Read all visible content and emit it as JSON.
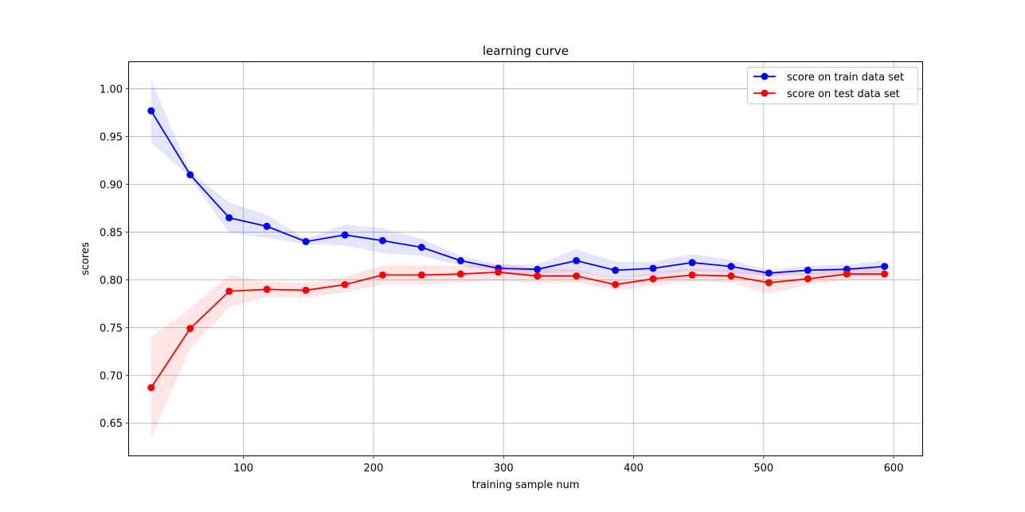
{
  "chart_data": {
    "type": "line",
    "title": "learning curve",
    "xlabel": "training sample num",
    "ylabel": "scores",
    "xlim": [
      12,
      622
    ],
    "ylim": [
      0.616,
      1.028
    ],
    "xticks": [
      100,
      200,
      300,
      400,
      500,
      600
    ],
    "yticks": [
      0.65,
      0.7,
      0.75,
      0.8,
      0.85,
      0.9,
      0.95,
      1.0
    ],
    "xtick_labels": [
      "100",
      "200",
      "300",
      "400",
      "500",
      "600"
    ],
    "ytick_labels": [
      "0.65",
      "0.70",
      "0.75",
      "0.80",
      "0.85",
      "0.90",
      "0.95",
      "1.00"
    ],
    "grid": true,
    "legend_position": "top-right",
    "x": [
      29,
      59,
      89,
      118,
      148,
      178,
      207,
      237,
      267,
      296,
      326,
      356,
      386,
      415,
      445,
      475,
      504,
      534,
      564,
      593
    ],
    "series": [
      {
        "name": "score on train data set",
        "color": "#0000ff",
        "band_color": "#0000ff",
        "values": [
          0.977,
          0.91,
          0.865,
          0.856,
          0.84,
          0.847,
          0.841,
          0.834,
          0.82,
          0.812,
          0.811,
          0.82,
          0.81,
          0.812,
          0.818,
          0.814,
          0.807,
          0.81,
          0.811,
          0.814
        ],
        "lower": [
          0.944,
          0.907,
          0.849,
          0.844,
          0.837,
          0.836,
          0.828,
          0.825,
          0.815,
          0.808,
          0.806,
          0.808,
          0.801,
          0.805,
          0.809,
          0.807,
          0.804,
          0.805,
          0.806,
          0.808
        ],
        "upper": [
          1.01,
          0.913,
          0.881,
          0.868,
          0.843,
          0.858,
          0.854,
          0.843,
          0.825,
          0.816,
          0.816,
          0.832,
          0.819,
          0.819,
          0.827,
          0.821,
          0.81,
          0.815,
          0.816,
          0.82
        ]
      },
      {
        "name": "score on test data set",
        "color": "#ff0000",
        "band_color": "#ff0000",
        "values": [
          0.687,
          0.749,
          0.788,
          0.79,
          0.789,
          0.795,
          0.805,
          0.805,
          0.806,
          0.808,
          0.804,
          0.804,
          0.795,
          0.801,
          0.805,
          0.804,
          0.797,
          0.801,
          0.806,
          0.806
        ],
        "lower": [
          0.634,
          0.728,
          0.771,
          0.782,
          0.781,
          0.787,
          0.795,
          0.795,
          0.797,
          0.799,
          0.796,
          0.797,
          0.789,
          0.794,
          0.798,
          0.797,
          0.785,
          0.795,
          0.8,
          0.8
        ],
        "upper": [
          0.74,
          0.77,
          0.805,
          0.798,
          0.797,
          0.803,
          0.815,
          0.815,
          0.815,
          0.817,
          0.812,
          0.811,
          0.801,
          0.808,
          0.812,
          0.811,
          0.809,
          0.807,
          0.812,
          0.812
        ]
      }
    ]
  }
}
